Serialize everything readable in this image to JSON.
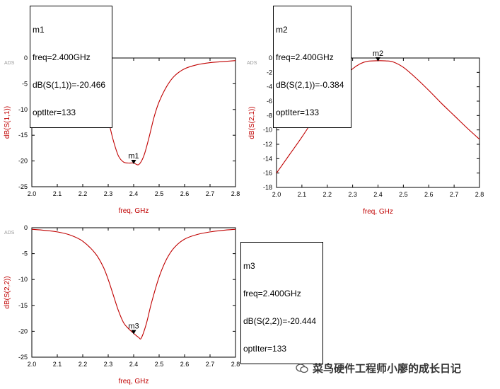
{
  "chart_data": [
    {
      "type": "line",
      "id": "s11",
      "watermark": "ADS",
      "xlabel": "freq, GHz",
      "ylabel": "dB(S(1,1))",
      "xlim": [
        2.0,
        2.8
      ],
      "ylim": [
        -25,
        0
      ],
      "xticks": [
        "2.0",
        "2.1",
        "2.2",
        "2.3",
        "2.4",
        "2.5",
        "2.6",
        "2.7",
        "2.8"
      ],
      "yticks": [
        "0",
        "-5",
        "-10",
        "-15",
        "-20",
        "-25"
      ],
      "grid": false,
      "color": "#c00000",
      "x": [
        2.0,
        2.05,
        2.1,
        2.15,
        2.2,
        2.25,
        2.28,
        2.3,
        2.32,
        2.34,
        2.36,
        2.38,
        2.4,
        2.42,
        2.44,
        2.46,
        2.48,
        2.5,
        2.53,
        2.56,
        2.6,
        2.65,
        2.7,
        2.75,
        2.8
      ],
      "y": [
        -0.5,
        -0.7,
        -1.0,
        -1.6,
        -2.8,
        -5.5,
        -8.5,
        -12.0,
        -16.0,
        -19.0,
        -20.2,
        -20.4,
        -20.4,
        -20.7,
        -19.0,
        -15.5,
        -11.5,
        -8.5,
        -5.5,
        -3.5,
        -2.1,
        -1.3,
        -0.9,
        -0.7,
        -0.5
      ],
      "marker": {
        "name": "m1",
        "x": 2.4,
        "y": -20.466,
        "lines": [
          "m1",
          "freq=2.400GHz",
          "dB(S(1,1))=-20.466",
          "optIter=133"
        ]
      }
    },
    {
      "type": "line",
      "id": "s21",
      "watermark": "ADS",
      "xlabel": "freq, GHz",
      "ylabel": "dB(S(2,1))",
      "xlim": [
        2.0,
        2.8
      ],
      "ylim": [
        -18,
        0
      ],
      "xticks": [
        "2.0",
        "2.1",
        "2.2",
        "2.3",
        "2.4",
        "2.5",
        "2.6",
        "2.7",
        "2.8"
      ],
      "yticks": [
        "0",
        "-2",
        "-4",
        "-6",
        "-8",
        "-10",
        "-12",
        "-14",
        "-16",
        "-18"
      ],
      "grid": false,
      "color": "#c00000",
      "x": [
        2.0,
        2.05,
        2.1,
        2.15,
        2.2,
        2.25,
        2.3,
        2.33,
        2.36,
        2.4,
        2.43,
        2.46,
        2.5,
        2.55,
        2.6,
        2.65,
        2.7,
        2.75,
        2.8
      ],
      "y": [
        -16.0,
        -13.5,
        -11.0,
        -8.3,
        -5.5,
        -3.2,
        -1.5,
        -0.8,
        -0.45,
        -0.38,
        -0.4,
        -0.55,
        -1.3,
        -2.8,
        -4.5,
        -6.3,
        -8.0,
        -9.7,
        -11.3
      ],
      "marker": {
        "name": "m2",
        "x": 2.4,
        "y": -0.384,
        "lines": [
          "m2",
          "freq=2.400GHz",
          "dB(S(2,1))=-0.384",
          "optIter=133"
        ]
      }
    },
    {
      "type": "line",
      "id": "s22",
      "watermark": "ADS",
      "xlabel": "freq, GHz",
      "ylabel": "dB(S(2,2))",
      "xlim": [
        2.0,
        2.8
      ],
      "ylim": [
        -25,
        0
      ],
      "xticks": [
        "2.0",
        "2.1",
        "2.2",
        "2.3",
        "2.4",
        "2.5",
        "2.6",
        "2.7",
        "2.8"
      ],
      "yticks": [
        "0",
        "-5",
        "-10",
        "-15",
        "-20",
        "-25"
      ],
      "grid": false,
      "color": "#c00000",
      "x": [
        2.0,
        2.05,
        2.1,
        2.15,
        2.2,
        2.25,
        2.28,
        2.3,
        2.32,
        2.34,
        2.36,
        2.38,
        2.4,
        2.42,
        2.43,
        2.45,
        2.47,
        2.5,
        2.53,
        2.56,
        2.6,
        2.65,
        2.7,
        2.75,
        2.8
      ],
      "y": [
        -0.3,
        -0.5,
        -0.8,
        -1.4,
        -2.6,
        -5.0,
        -7.5,
        -10.0,
        -13.0,
        -16.0,
        -18.3,
        -19.5,
        -20.4,
        -21.2,
        -21.3,
        -18.5,
        -14.5,
        -9.5,
        -6.0,
        -3.8,
        -2.2,
        -1.3,
        -0.8,
        -0.5,
        -0.3
      ],
      "marker": {
        "name": "m3",
        "x": 2.4,
        "y": -20.444,
        "lines": [
          "m3",
          "freq=2.400GHz",
          "dB(S(2,2))=-20.444",
          "optIter=133"
        ]
      }
    }
  ],
  "watermark_text": "菜鸟硬件工程师小廖的成长日记",
  "colors": {
    "curve": "#c00000",
    "axis_label": "#c00000",
    "ads_tag": "#9a9a9a"
  }
}
